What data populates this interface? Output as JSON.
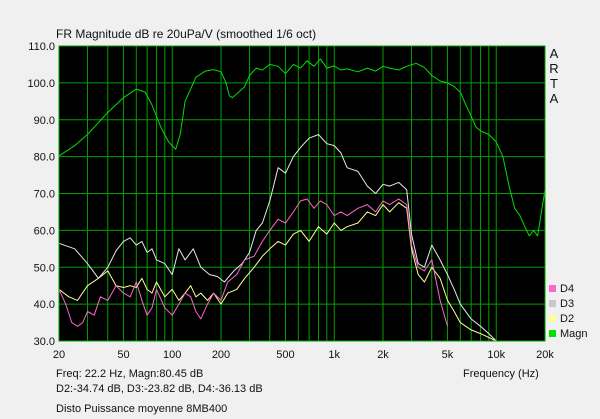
{
  "window": {
    "title": "FR Magnitude dB re 20uPa/V (smoothed 1/6 oct)",
    "vendor": [
      "A",
      "R",
      "T",
      "A"
    ],
    "readout_line1": "Freq: 22.2 Hz, Magn:80.45 dB",
    "readout_line2": "D2:-34.74 dB, D3:-23.82 dB, D4:-36.13 dB",
    "caption": "Disto Puissance moyenne 8MB400"
  },
  "chart_data": {
    "type": "line",
    "title": "FR Magnitude dB re 20uPa/V (smoothed 1/6 oct)",
    "xlabel": "Frequency (Hz)",
    "ylabel": "",
    "xscale": "log",
    "xlim": [
      20,
      20000
    ],
    "ylim": [
      30,
      110
    ],
    "grid": true,
    "background": "#000000",
    "grid_color": "#00a000",
    "legend_position": "bottom-right",
    "yticks": [
      "30.0",
      "40.0",
      "50.0",
      "60.0",
      "70.0",
      "80.0",
      "90.0",
      "100.0",
      "110.0"
    ],
    "ytick_values": [
      30,
      40,
      50,
      60,
      70,
      80,
      90,
      100,
      110
    ],
    "xticks": [
      "20",
      "50",
      "100",
      "200",
      "500",
      "1k",
      "2k",
      "5k",
      "10k",
      "20k"
    ],
    "xtick_values": [
      20,
      50,
      100,
      200,
      500,
      1000,
      2000,
      5000,
      10000,
      20000
    ],
    "series": [
      {
        "name": "Magn",
        "color": "#00e000",
        "x": [
          20,
          25,
          30,
          40,
          50,
          60,
          68,
          75,
          85,
          95,
          105,
          112,
          120,
          140,
          160,
          180,
          200,
          215,
          225,
          235,
          250,
          280,
          300,
          330,
          360,
          400,
          450,
          500,
          560,
          620,
          680,
          750,
          820,
          900,
          1000,
          1100,
          1200,
          1400,
          1600,
          1800,
          2000,
          2200,
          2500,
          2800,
          3200,
          3600,
          4000,
          4500,
          5000,
          5500,
          6000,
          6500,
          7000,
          7500,
          8000,
          9000,
          10000,
          11000,
          12000,
          13000,
          14000,
          15000,
          16000,
          17000,
          18000,
          20000
        ],
        "y": [
          80.2,
          83,
          86,
          92,
          96,
          98.3,
          97.5,
          94,
          88,
          84,
          82,
          86,
          95,
          101.5,
          103.2,
          103.6,
          103,
          100,
          96.5,
          96,
          97,
          99,
          102,
          104,
          103.5,
          105,
          104.5,
          102.5,
          105,
          104,
          106,
          104.5,
          106.5,
          104,
          104.6,
          103.5,
          103.8,
          103,
          104,
          103.2,
          104.5,
          104,
          103.5,
          104.5,
          105.3,
          104.2,
          102,
          100.5,
          100,
          99,
          97.5,
          94,
          91,
          88,
          87,
          86,
          84,
          80,
          72,
          66,
          64,
          61,
          58.5,
          60,
          58.5,
          71
        ]
      },
      {
        "name": "D2",
        "color": "#ffff99",
        "x": [
          20,
          23,
          26,
          30,
          35,
          40,
          45,
          50,
          55,
          60,
          65,
          70,
          75,
          80,
          90,
          100,
          110,
          120,
          130,
          140,
          150,
          165,
          180,
          200,
          220,
          250,
          280,
          320,
          360,
          400,
          450,
          500,
          560,
          620,
          700,
          800,
          900,
          1000,
          1100,
          1200,
          1400,
          1600,
          1800,
          2000,
          2200,
          2500,
          2800,
          3000,
          3300,
          3600,
          4000,
          4500,
          5000,
          5500,
          6000,
          7000,
          8000,
          10000
        ],
        "y": [
          44,
          42,
          41,
          45,
          47,
          49,
          45,
          44.5,
          45,
          44.5,
          47,
          44,
          43,
          46,
          42,
          44,
          41,
          43,
          45,
          42,
          43,
          41,
          43,
          40,
          43,
          44,
          47,
          50,
          53,
          55,
          57,
          56,
          59,
          60,
          57,
          61,
          59,
          62,
          60,
          61,
          62,
          65,
          64,
          67,
          65,
          67.5,
          66,
          55,
          48,
          46,
          50,
          47,
          41,
          38,
          35,
          33,
          32,
          30
        ]
      },
      {
        "name": "D3",
        "color": "#e8e8e8",
        "x": [
          20,
          25,
          30,
          35,
          40,
          45,
          50,
          55,
          60,
          65,
          70,
          75,
          80,
          90,
          100,
          110,
          120,
          135,
          150,
          170,
          190,
          210,
          240,
          270,
          300,
          330,
          360,
          400,
          450,
          500,
          560,
          620,
          700,
          800,
          900,
          1000,
          1100,
          1200,
          1400,
          1600,
          1800,
          2000,
          2200,
          2500,
          2800,
          3000,
          3300,
          3600,
          4000,
          4500,
          5000,
          5500,
          6000,
          7000,
          8000,
          9000,
          10000
        ],
        "y": [
          56.5,
          55,
          51,
          47,
          50,
          54.5,
          57,
          58,
          56,
          57,
          54,
          55,
          52,
          51,
          48,
          55,
          52,
          55,
          50,
          48,
          47.5,
          46,
          49,
          51,
          54,
          60,
          62,
          68,
          77,
          75.5,
          80,
          82.5,
          85,
          86,
          83.5,
          83,
          81,
          77,
          76,
          72,
          70,
          72.5,
          72,
          73,
          71,
          59,
          51,
          50,
          56,
          52,
          48,
          44,
          40,
          36,
          34,
          32,
          30
        ]
      },
      {
        "name": "D4",
        "color": "#ff66cc",
        "x": [
          20,
          22,
          24,
          26,
          28,
          30,
          33,
          36,
          40,
          45,
          50,
          55,
          60,
          65,
          70,
          75,
          80,
          90,
          100,
          110,
          120,
          130,
          140,
          150,
          165,
          180,
          200,
          220,
          250,
          280,
          320,
          360,
          400,
          450,
          500,
          560,
          620,
          680,
          750,
          820,
          900,
          1000,
          1100,
          1200,
          1400,
          1600,
          1800,
          2000,
          2200,
          2500,
          2800,
          3000,
          3300,
          3600,
          4000,
          4500,
          5000
        ],
        "y": [
          44,
          40,
          35,
          34,
          35,
          38,
          37,
          42,
          41,
          45,
          43,
          42,
          46,
          41,
          37,
          39,
          44,
          39,
          37,
          40,
          43,
          42,
          38,
          36,
          40,
          43,
          41,
          46,
          48,
          52,
          53,
          57,
          60,
          63,
          62,
          65,
          68,
          68.5,
          66,
          68,
          67,
          64,
          65,
          64,
          66,
          67,
          65,
          68,
          67,
          68.5,
          67,
          56,
          50,
          49,
          52,
          41,
          34
        ]
      }
    ]
  },
  "legend": {
    "items": [
      {
        "label": "D4",
        "color": "#ff66cc"
      },
      {
        "label": "D3",
        "color": "#c8c8c8"
      },
      {
        "label": "D2",
        "color": "#ffff99"
      },
      {
        "label": "Magn",
        "color": "#00e000"
      }
    ]
  }
}
